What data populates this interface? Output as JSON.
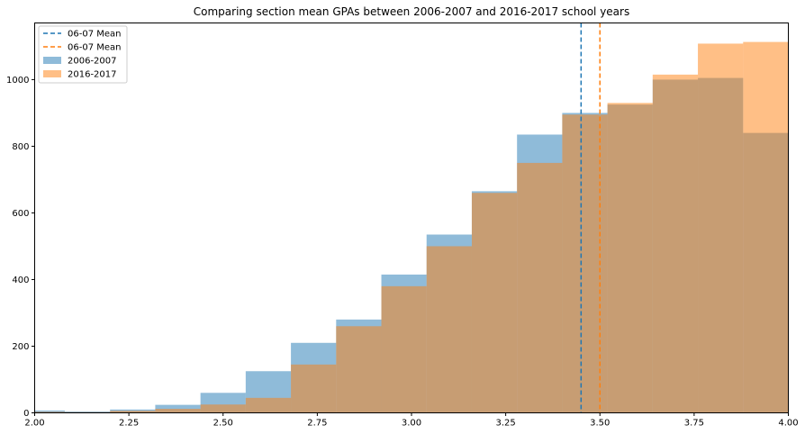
{
  "chart_data": {
    "type": "histogram",
    "title": "Comparing section mean GPAs between 2006-2007 and 2016-2017 school years",
    "xlim": [
      2.0,
      4.0
    ],
    "ylim": [
      0,
      1170
    ],
    "x_ticks": [
      2.0,
      2.25,
      2.5,
      2.75,
      3.0,
      3.25,
      3.5,
      3.75,
      4.0
    ],
    "x_tick_labels": [
      "2.00",
      "2.25",
      "2.50",
      "2.75",
      "3.00",
      "3.25",
      "3.50",
      "3.75",
      "4.00"
    ],
    "y_ticks": [
      0,
      200,
      400,
      600,
      800,
      1000
    ],
    "y_tick_labels": [
      "0",
      "200",
      "400",
      "600",
      "800",
      "1000"
    ],
    "series": [
      {
        "name": "2006-2007",
        "color": "#1f77b4",
        "alpha": 0.5,
        "bins": [
          {
            "x0": 2.0,
            "x1": 2.08,
            "value": 7
          },
          {
            "x0": 2.08,
            "x1": 2.2,
            "value": 4
          },
          {
            "x0": 2.2,
            "x1": 2.32,
            "value": 10
          },
          {
            "x0": 2.32,
            "x1": 2.44,
            "value": 24
          },
          {
            "x0": 2.44,
            "x1": 2.56,
            "value": 60
          },
          {
            "x0": 2.56,
            "x1": 2.68,
            "value": 125
          },
          {
            "x0": 2.68,
            "x1": 2.8,
            "value": 210
          },
          {
            "x0": 2.8,
            "x1": 2.92,
            "value": 280
          },
          {
            "x0": 2.92,
            "x1": 3.04,
            "value": 415
          },
          {
            "x0": 3.04,
            "x1": 3.16,
            "value": 535
          },
          {
            "x0": 3.16,
            "x1": 3.28,
            "value": 665
          },
          {
            "x0": 3.28,
            "x1": 3.4,
            "value": 835
          },
          {
            "x0": 3.4,
            "x1": 3.52,
            "value": 900
          },
          {
            "x0": 3.52,
            "x1": 3.64,
            "value": 925
          },
          {
            "x0": 3.64,
            "x1": 3.76,
            "value": 1000
          },
          {
            "x0": 3.76,
            "x1": 3.88,
            "value": 1005
          },
          {
            "x0": 3.88,
            "x1": 4.0,
            "value": 840
          }
        ]
      },
      {
        "name": "2016-2017",
        "color": "#ff7f0e",
        "alpha": 0.5,
        "bins": [
          {
            "x0": 2.0,
            "x1": 2.08,
            "value": 3
          },
          {
            "x0": 2.08,
            "x1": 2.2,
            "value": 2
          },
          {
            "x0": 2.2,
            "x1": 2.32,
            "value": 6
          },
          {
            "x0": 2.32,
            "x1": 2.44,
            "value": 12
          },
          {
            "x0": 2.44,
            "x1": 2.56,
            "value": 25
          },
          {
            "x0": 2.56,
            "x1": 2.68,
            "value": 45
          },
          {
            "x0": 2.68,
            "x1": 2.8,
            "value": 145
          },
          {
            "x0": 2.8,
            "x1": 2.92,
            "value": 260
          },
          {
            "x0": 2.92,
            "x1": 3.04,
            "value": 380
          },
          {
            "x0": 3.04,
            "x1": 3.16,
            "value": 500
          },
          {
            "x0": 3.16,
            "x1": 3.28,
            "value": 660
          },
          {
            "x0": 3.28,
            "x1": 3.4,
            "value": 750
          },
          {
            "x0": 3.4,
            "x1": 3.52,
            "value": 895
          },
          {
            "x0": 3.52,
            "x1": 3.64,
            "value": 930
          },
          {
            "x0": 3.64,
            "x1": 3.76,
            "value": 1015
          },
          {
            "x0": 3.76,
            "x1": 3.88,
            "value": 1108
          },
          {
            "x0": 3.88,
            "x1": 4.0,
            "value": 1113
          }
        ]
      }
    ],
    "mean_lines": [
      {
        "name": "06-07 Mean",
        "x": 3.45,
        "color": "#1f77b4"
      },
      {
        "name": "06-07 Mean",
        "x": 3.5,
        "color": "#ff7f0e"
      }
    ],
    "legend": {
      "placement": "top-left",
      "entries": [
        {
          "label": "06-07 Mean",
          "kind": "line",
          "color": "#1f77b4"
        },
        {
          "label": "06-07 Mean",
          "kind": "line",
          "color": "#ff7f0e"
        },
        {
          "label": "2006-2007",
          "kind": "patch",
          "color": "#1f77b4"
        },
        {
          "label": "2016-2017",
          "kind": "patch",
          "color": "#ff7f0e"
        }
      ]
    }
  }
}
